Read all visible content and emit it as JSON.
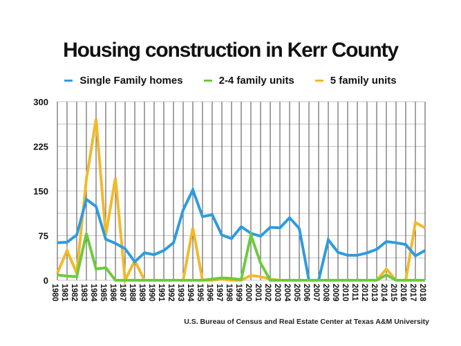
{
  "chart_data": {
    "type": "line",
    "title": "Housing construction in Kerr County",
    "xlabel": "",
    "ylabel": "",
    "ylim": [
      0,
      300
    ],
    "yticks": [
      0,
      75,
      150,
      225,
      300
    ],
    "grid": true,
    "legend_position": "top-center",
    "x": [
      "1980",
      "1981",
      "1982",
      "1983",
      "1984",
      "1985",
      "1986",
      "1987",
      "1988",
      "1989",
      "1990",
      "1991",
      "1992",
      "1993",
      "1994",
      "1995",
      "1996",
      "1997",
      "1998",
      "1999",
      "2000",
      "2001",
      "2002",
      "2003",
      "2004",
      "2005",
      "2006",
      "2007",
      "2008",
      "2009",
      "2010",
      "2011",
      "2012",
      "2013",
      "2014",
      "2015",
      "2016",
      "2017",
      "2018"
    ],
    "series": [
      {
        "name": "Single Family homes",
        "color": "#2E9BE0",
        "values": [
          63,
          64,
          76,
          136,
          124,
          69,
          62,
          53,
          31,
          46,
          43,
          50,
          63,
          118,
          152,
          107,
          110,
          76,
          70,
          90,
          79,
          74,
          89,
          88,
          105,
          87,
          0,
          0,
          68,
          47,
          42,
          42,
          46,
          52,
          65,
          63,
          60,
          41,
          50
        ]
      },
      {
        "name": "2-4 family units",
        "color": "#6CCB3E",
        "values": [
          9,
          7,
          6,
          79,
          19,
          21,
          0,
          0,
          0,
          0,
          0,
          0,
          0,
          0,
          0,
          0,
          2,
          4,
          3,
          1,
          76,
          29,
          0,
          0,
          0,
          0,
          0,
          0,
          0,
          0,
          0,
          0,
          0,
          0,
          9,
          0,
          0,
          0,
          0
        ]
      },
      {
        "name": "5 family units",
        "color": "#F2B92A",
        "values": [
          12,
          50,
          12,
          170,
          271,
          76,
          172,
          0,
          33,
          0,
          0,
          0,
          0,
          0,
          88,
          0,
          0,
          2,
          0,
          0,
          8,
          6,
          2,
          0,
          0,
          0,
          0,
          0,
          0,
          0,
          0,
          0,
          0,
          0,
          19,
          0,
          0,
          97,
          88
        ]
      }
    ]
  },
  "footer": {
    "source": "U.S. Bureau of Census and Real Estate Center at Texas A&M University"
  }
}
